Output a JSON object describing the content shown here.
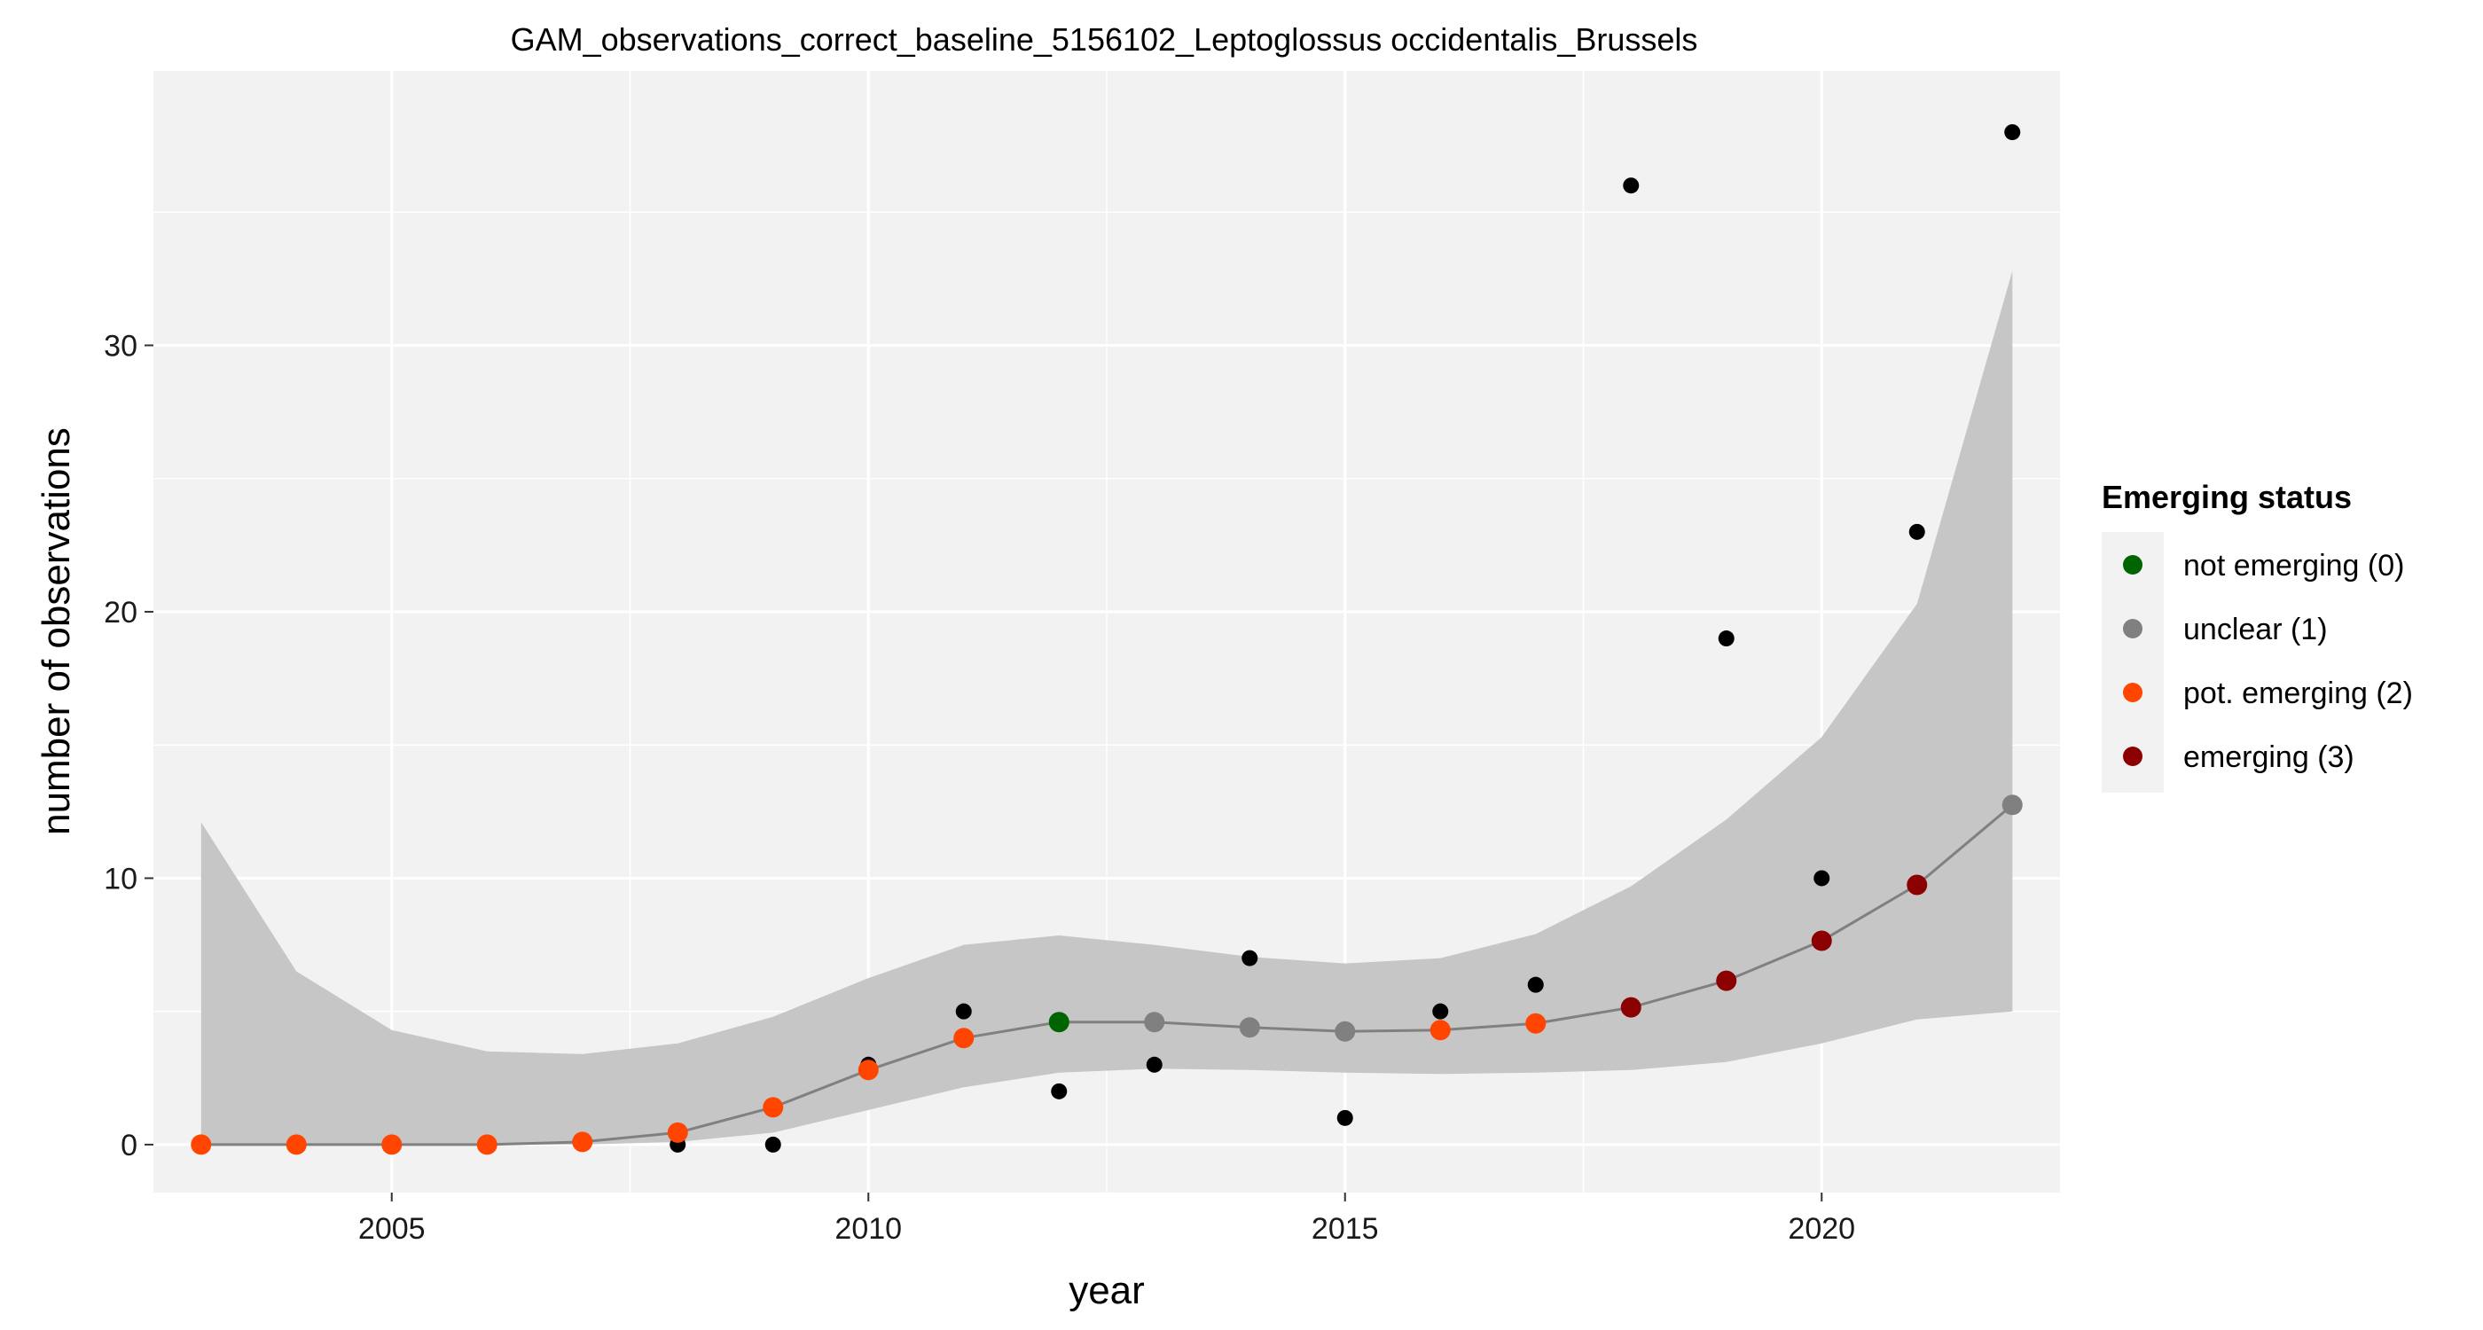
{
  "chart_data": {
    "type": "line",
    "title": "GAM_observations_correct_baseline_5156102_Leptoglossus occidentalis_Brussels",
    "xlabel": "year",
    "ylabel": "number of observations",
    "xlim": [
      2002.5,
      2022.5
    ],
    "ylim": [
      -1.8,
      40.3
    ],
    "x_ticks": [
      2005,
      2010,
      2015,
      2020
    ],
    "y_ticks": [
      0,
      10,
      20,
      30
    ],
    "grid": true,
    "legend": {
      "title": "Emerging status",
      "position": "right",
      "entries": [
        {
          "label": "not emerging (0)",
          "color": "#006400"
        },
        {
          "label": "unclear (1)",
          "color": "#808080"
        },
        {
          "label": "pot. emerging (2)",
          "color": "#ff4500"
        },
        {
          "label": "emerging (3)",
          "color": "#8b0000"
        }
      ]
    },
    "observations": {
      "color": "#000000",
      "x": [
        2008,
        2009,
        2010,
        2011,
        2012,
        2013,
        2014,
        2015,
        2016,
        2017,
        2018,
        2019,
        2020,
        2021,
        2022
      ],
      "y": [
        0,
        0,
        3,
        5,
        2,
        3,
        7,
        1,
        5,
        6,
        36,
        19,
        10,
        23,
        38
      ]
    },
    "fit": {
      "line_color": "#808080",
      "band_color": "#c6c6c6",
      "x": [
        2003,
        2004,
        2005,
        2006,
        2007,
        2008,
        2009,
        2010,
        2011,
        2012,
        2013,
        2014,
        2015,
        2016,
        2017,
        2018,
        2019,
        2020,
        2021,
        2022
      ],
      "y": [
        0,
        0,
        0,
        0,
        0.1,
        0.45,
        1.4,
        2.8,
        4.0,
        4.6,
        4.6,
        4.4,
        4.25,
        4.3,
        4.55,
        5.15,
        6.15,
        7.65,
        9.75,
        12.75
      ],
      "lower": [
        0,
        0,
        0,
        0,
        0,
        0.1,
        0.45,
        1.3,
        2.15,
        2.7,
        2.85,
        2.8,
        2.7,
        2.65,
        2.7,
        2.8,
        3.1,
        3.8,
        4.7,
        5.0
      ],
      "upper": [
        12.1,
        6.5,
        4.3,
        3.5,
        3.4,
        3.8,
        4.8,
        6.25,
        7.5,
        7.85,
        7.5,
        7.05,
        6.8,
        7.0,
        7.9,
        9.7,
        12.2,
        15.3,
        20.3,
        32.8
      ],
      "status": [
        2,
        2,
        2,
        2,
        2,
        2,
        2,
        2,
        2,
        0,
        1,
        1,
        1,
        2,
        2,
        3,
        3,
        3,
        3,
        1
      ]
    }
  }
}
